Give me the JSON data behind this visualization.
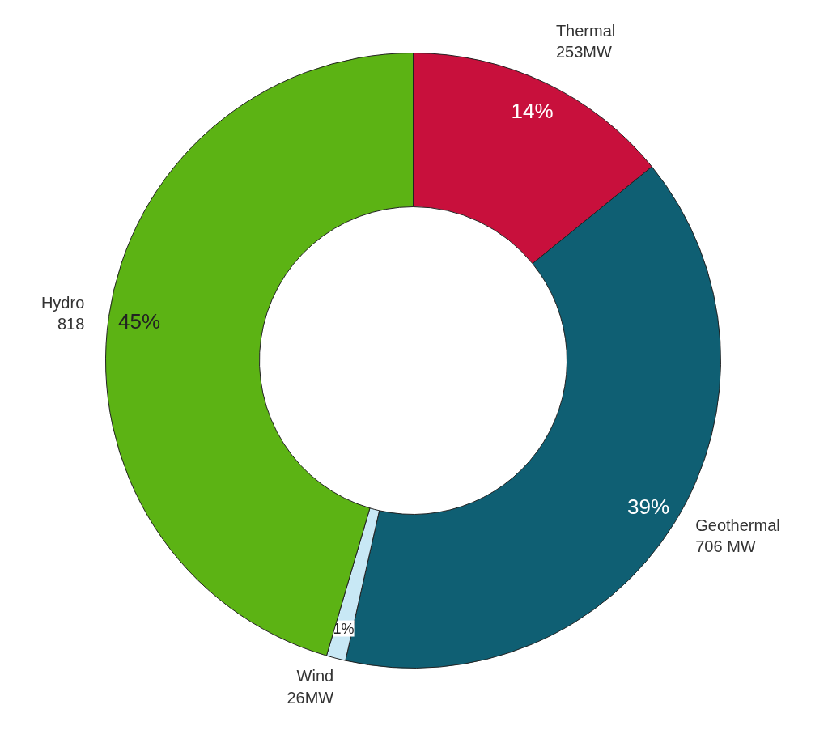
{
  "chart_data": {
    "type": "donut",
    "categories": [
      "Thermal\n253MW",
      "Geothermal\n706 MW",
      "Wind\n26MW",
      "Hydro\n818"
    ],
    "values": [
      14,
      39,
      1,
      45
    ],
    "colors": [
      "#c8103c",
      "#0f5f73",
      "#c8e8f5",
      "#5cb314"
    ],
    "value_labels": [
      "14%",
      "39%",
      "1%",
      "45%"
    ]
  }
}
